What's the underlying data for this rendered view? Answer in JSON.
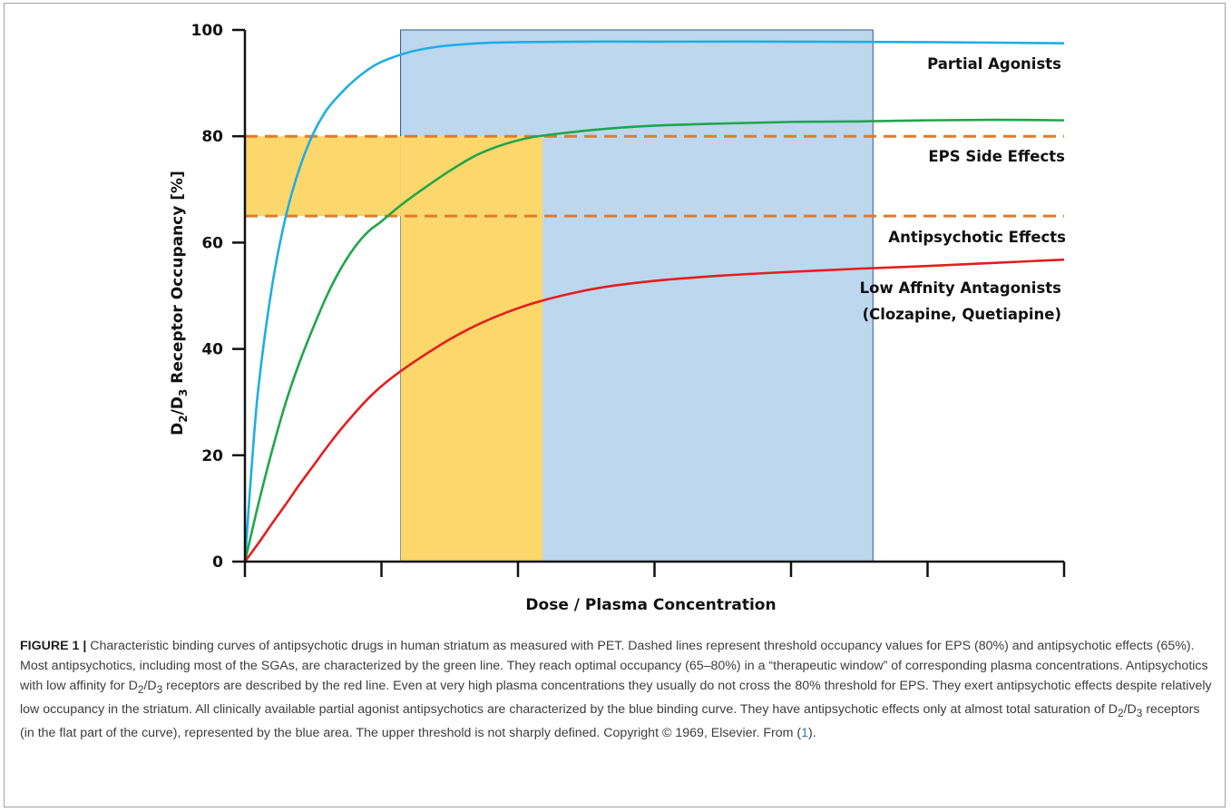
{
  "chart_data": {
    "type": "line",
    "xlabel": "Dose / Plasma Concentration",
    "ylabel": {
      "d1": "D",
      "s1": "2",
      "slash": "/D",
      "s2": "3",
      "rest": " Receptor Occupancy [%]"
    },
    "ylim": [
      0,
      100
    ],
    "yticks": [
      "0",
      "20",
      "40",
      "60",
      "80",
      "100"
    ],
    "xlim": [
      0,
      6
    ],
    "xtick_count": 7,
    "thresholds": [
      {
        "name": "EPS Side Effects",
        "y": 80,
        "color": "#e07b2a"
      },
      {
        "name": "Antipsychotic Effects",
        "y": 65,
        "color": "#e07b2a"
      }
    ],
    "regions": [
      {
        "name": "therapeutic-window",
        "x": [
          1.14,
          2.18
        ],
        "y": [
          0,
          80
        ],
        "color": "#fcd76b"
      },
      {
        "name": "threshold-band",
        "x": [
          0,
          1.14
        ],
        "y": [
          65,
          80
        ],
        "color": "#fcd76b"
      },
      {
        "name": "partial-agonist-window",
        "x": [
          1.14,
          4.6
        ],
        "y": [
          0,
          100
        ],
        "color": "#bdd7ee"
      }
    ],
    "series": [
      {
        "label": "Partial Agonists",
        "color": "#1eaee6",
        "x": [
          0,
          0.05,
          0.1,
          0.2,
          0.3,
          0.4,
          0.5,
          0.6,
          0.7,
          0.8,
          0.9,
          1.0,
          1.2,
          1.4,
          1.6,
          1.8,
          2.0,
          2.5,
          3.0,
          4.0,
          5.0,
          6.0
        ],
        "y": [
          0,
          18,
          33,
          52,
          65,
          74,
          80.5,
          85,
          88,
          90.5,
          92.5,
          94,
          95.8,
          96.8,
          97.3,
          97.6,
          97.7,
          97.8,
          97.8,
          97.8,
          97.7,
          97.5
        ]
      },
      {
        "label": "",
        "color": "#1fa64a",
        "x": [
          0,
          0.1,
          0.2,
          0.3,
          0.4,
          0.5,
          0.6,
          0.7,
          0.8,
          0.9,
          1.0,
          1.14,
          1.3,
          1.5,
          1.7,
          1.9,
          2.1,
          2.3,
          2.6,
          3.0,
          3.5,
          4.0,
          4.5,
          5.0,
          5.5,
          6.0
        ],
        "y": [
          0,
          11,
          21,
          30,
          37.5,
          44,
          50,
          55,
          59,
          62,
          64,
          67,
          70,
          73.5,
          76.5,
          78.5,
          79.8,
          80.5,
          81.3,
          82,
          82.4,
          82.7,
          82.8,
          83,
          83.1,
          83
        ]
      },
      {
        "label": "Low Affnity Antagonists",
        "label2": "(Clozapine, Quetiapine)",
        "color": "#e41e1e",
        "x": [
          0,
          0.1,
          0.2,
          0.3,
          0.4,
          0.5,
          0.6,
          0.7,
          0.8,
          0.9,
          1.0,
          1.14,
          1.3,
          1.5,
          1.7,
          1.9,
          2.1,
          2.3,
          2.6,
          3.0,
          3.5,
          4.0,
          4.5,
          5.0,
          5.5,
          6.0
        ],
        "y": [
          0,
          3.5,
          7.2,
          10.8,
          14.5,
          18,
          21.5,
          24.8,
          27.8,
          30.6,
          33,
          35.8,
          38.6,
          41.8,
          44.5,
          46.7,
          48.5,
          49.9,
          51.5,
          52.8,
          53.8,
          54.5,
          55.1,
          55.6,
          56.2,
          56.8
        ]
      }
    ]
  },
  "caption": {
    "label": "FIGURE 1 |",
    "p1": " Characteristic binding curves of antipsychotic drugs in human striatum as measured with PET. Dashed lines represent threshold occupancy values for EPS (80%) and antipsychotic effects (65%). Most antipsychotics, including most of the SGAs, are characterized by the green line. They reach optimal occupancy (65–80%) in a “therapeutic window” of corresponding plasma concentrations. Antipsychotics with low affinity for D",
    "sub1": "2",
    "p2": "/D",
    "sub2": "3",
    "p3": " receptors are described by the red line. Even at very high plasma concentrations they usually do not cross the 80% threshold for EPS. They exert antipsychotic effects despite relatively low occupancy in the striatum. All clinically available partial agonist antipsychotics are characterized by the blue binding curve. They have antipsychotic effects only at almost total saturation of D",
    "sub3": "2",
    "p4": "/D",
    "sub4": "3",
    "p5": " receptors (in the flat part of the curve), represented by the blue area. The upper threshold is not sharply defined. Copyright © 1969, Elsevier. From (",
    "ref": "1",
    "p6": ")."
  }
}
